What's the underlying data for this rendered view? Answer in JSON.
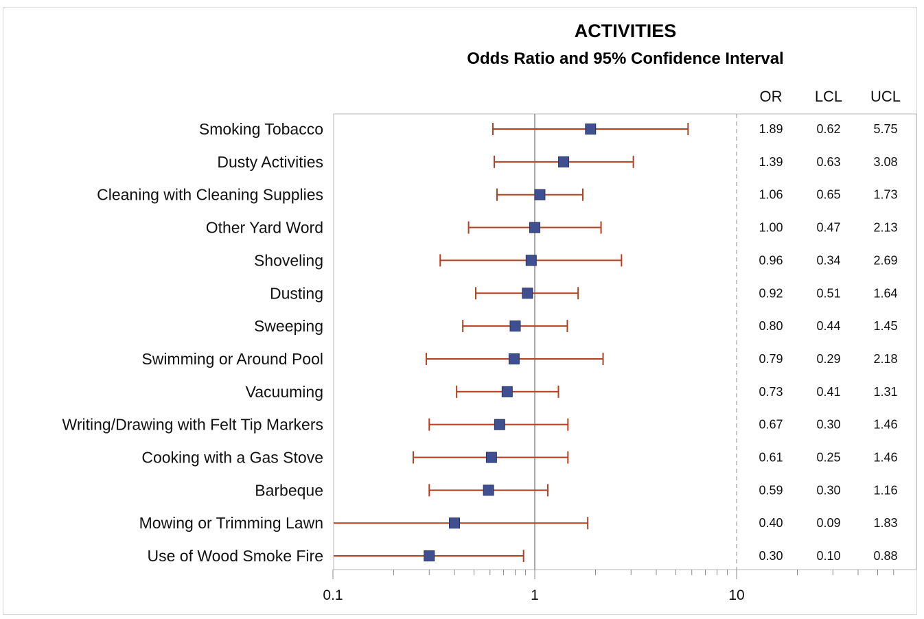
{
  "chart_data": {
    "type": "forest",
    "title": "ACTIVITIES",
    "subtitle": "Odds Ratio and 95% Confidence Interval",
    "x_scale": "log",
    "xlim": [
      0.1,
      60
    ],
    "x_ticks": [
      0.1,
      1,
      10
    ],
    "x_tick_labels": [
      "0.1",
      "1",
      "10"
    ],
    "reference_line": 1,
    "dashed_line": 10,
    "column_headers": [
      "OR",
      "LCL",
      "UCL"
    ],
    "colors": {
      "marker": "#3f4f8f",
      "interval": "#b5401f",
      "reference": "#8c8c8c",
      "axis": "#888888"
    },
    "rows": [
      {
        "label": "Smoking Tobacco",
        "or": 1.89,
        "lcl": 0.62,
        "ucl": 5.75,
        "or_text": "1.89",
        "lcl_text": "0.62",
        "ucl_text": "5.75"
      },
      {
        "label": "Dusty Activities",
        "or": 1.39,
        "lcl": 0.63,
        "ucl": 3.08,
        "or_text": "1.39",
        "lcl_text": "0.63",
        "ucl_text": "3.08"
      },
      {
        "label": "Cleaning with Cleaning Supplies",
        "or": 1.06,
        "lcl": 0.65,
        "ucl": 1.73,
        "or_text": "1.06",
        "lcl_text": "0.65",
        "ucl_text": "1.73"
      },
      {
        "label": "Other Yard Word",
        "or": 1.0,
        "lcl": 0.47,
        "ucl": 2.13,
        "or_text": "1.00",
        "lcl_text": "0.47",
        "ucl_text": "2.13"
      },
      {
        "label": "Shoveling",
        "or": 0.96,
        "lcl": 0.34,
        "ucl": 2.69,
        "or_text": "0.96",
        "lcl_text": "0.34",
        "ucl_text": "2.69"
      },
      {
        "label": "Dusting",
        "or": 0.92,
        "lcl": 0.51,
        "ucl": 1.64,
        "or_text": "0.92",
        "lcl_text": "0.51",
        "ucl_text": "1.64"
      },
      {
        "label": "Sweeping",
        "or": 0.8,
        "lcl": 0.44,
        "ucl": 1.45,
        "or_text": "0.80",
        "lcl_text": "0.44",
        "ucl_text": "1.45"
      },
      {
        "label": "Swimming or Around Pool",
        "or": 0.79,
        "lcl": 0.29,
        "ucl": 2.18,
        "or_text": "0.79",
        "lcl_text": "0.29",
        "ucl_text": "2.18"
      },
      {
        "label": "Vacuuming",
        "or": 0.73,
        "lcl": 0.41,
        "ucl": 1.31,
        "or_text": "0.73",
        "lcl_text": "0.41",
        "ucl_text": "1.31"
      },
      {
        "label": "Writing/Drawing with Felt Tip Markers",
        "or": 0.67,
        "lcl": 0.3,
        "ucl": 1.46,
        "or_text": "0.67",
        "lcl_text": "0.30",
        "ucl_text": "1.46"
      },
      {
        "label": "Cooking with a Gas Stove",
        "or": 0.61,
        "lcl": 0.25,
        "ucl": 1.46,
        "or_text": "0.61",
        "lcl_text": "0.25",
        "ucl_text": "1.46"
      },
      {
        "label": "Barbeque",
        "or": 0.59,
        "lcl": 0.3,
        "ucl": 1.16,
        "or_text": "0.59",
        "lcl_text": "0.30",
        "ucl_text": "1.16"
      },
      {
        "label": "Mowing or Trimming Lawn",
        "or": 0.4,
        "lcl": 0.09,
        "ucl": 1.83,
        "or_text": "0.40",
        "lcl_text": "0.09",
        "ucl_text": "1.83"
      },
      {
        "label": "Use of Wood Smoke Fire",
        "or": 0.3,
        "lcl": 0.1,
        "ucl": 0.88,
        "or_text": "0.30",
        "lcl_text": "0.10",
        "ucl_text": "0.88"
      }
    ]
  }
}
